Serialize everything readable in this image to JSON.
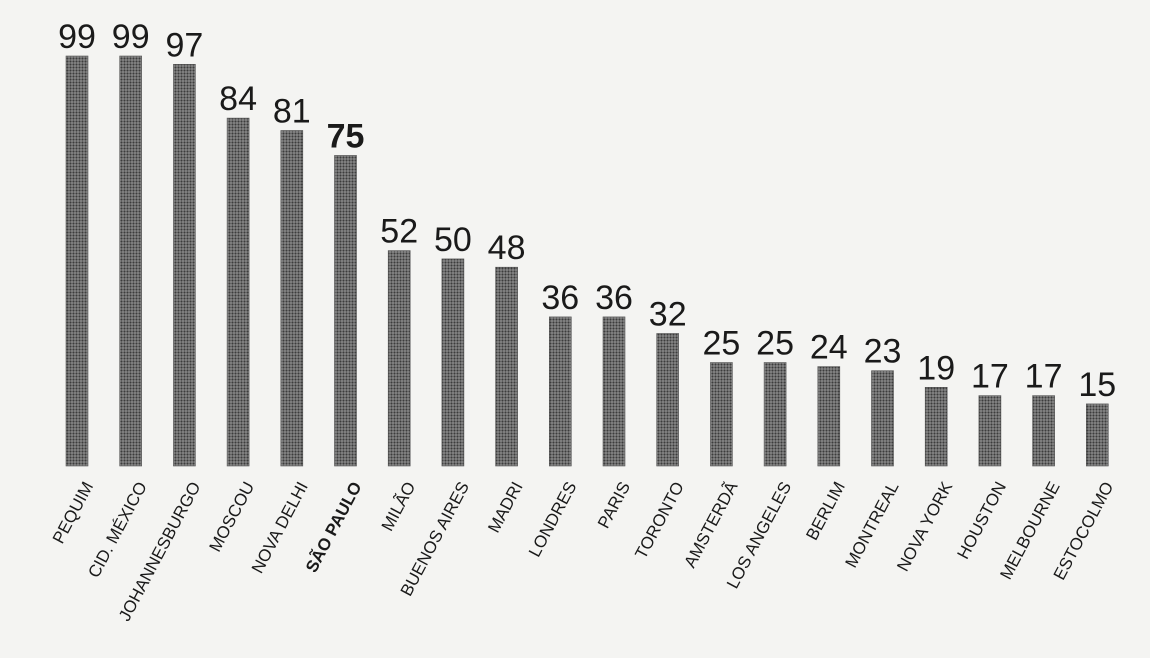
{
  "chart_data": {
    "type": "bar",
    "categories": [
      "PEQUIM",
      "CID. MÉXICO",
      "JOHANNESBURGO",
      "MOSCOU",
      "NOVA DELHI",
      "SÃO PAULO",
      "MILÃO",
      "BUENOS AIRES",
      "MADRI",
      "LONDRES",
      "PARIS",
      "TORONTO",
      "AMSTERDÃ",
      "LOS ANGELES",
      "BERLIM",
      "MONTREAL",
      "NOVA YORK",
      "HOUSTON",
      "MELBOURNE",
      "ESTOCOLMO"
    ],
    "values": [
      99,
      99,
      97,
      84,
      81,
      75,
      52,
      50,
      48,
      36,
      36,
      32,
      25,
      25,
      24,
      23,
      19,
      17,
      17,
      15
    ],
    "highlight": "SÃO PAULO",
    "title": "",
    "xlabel": "",
    "ylabel": "",
    "ylim": [
      0,
      100
    ],
    "grid": false,
    "colors": {
      "bar": "#6e6e6e",
      "text": "#1a1a1a",
      "background": "#f4f4f2"
    }
  }
}
